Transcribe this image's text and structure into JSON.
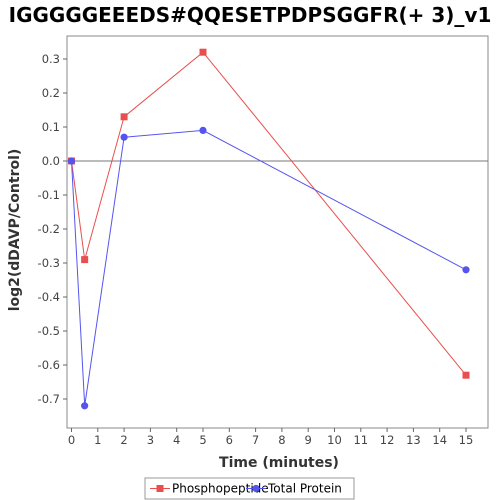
{
  "chart_data": {
    "type": "line",
    "title": "IGGGGGEEEDS#QQESETPDPSGGFR(+ 3)_v1",
    "xlabel": "Time (minutes)",
    "ylabel": "log2(dDAVP/Control)",
    "xlim": [
      0,
      16
    ],
    "ylim": [
      -0.8,
      0.35
    ],
    "x_ticks": [
      0,
      1,
      2,
      3,
      4,
      5,
      6,
      7,
      8,
      9,
      10,
      11,
      12,
      13,
      14,
      15
    ],
    "y_ticks": [
      -0.7,
      -0.6,
      -0.5,
      -0.4,
      -0.3,
      -0.2,
      -0.1,
      0.0,
      0.1,
      0.2,
      0.3
    ],
    "y_tick_labels": [
      "-0.7",
      "-0.6",
      "-0.5",
      "-0.4",
      "-0.3",
      "-0.2",
      "-0.1",
      "0.0",
      "0.1",
      "0.2",
      "0.3"
    ],
    "zero_line": true,
    "grid": false,
    "legend_position": "bottom",
    "series": [
      {
        "name": "Phosphopeptide",
        "marker": "square",
        "color": "#e8504f",
        "x": [
          0,
          0.5,
          2,
          5,
          15
        ],
        "y": [
          0.0,
          -0.29,
          0.13,
          0.32,
          -0.63
        ]
      },
      {
        "name": "Total Protein",
        "marker": "circle",
        "color": "#5555ee",
        "x": [
          0,
          0.5,
          2,
          5,
          15
        ],
        "y": [
          0.0,
          -0.72,
          0.07,
          0.09,
          -0.32
        ]
      }
    ]
  }
}
